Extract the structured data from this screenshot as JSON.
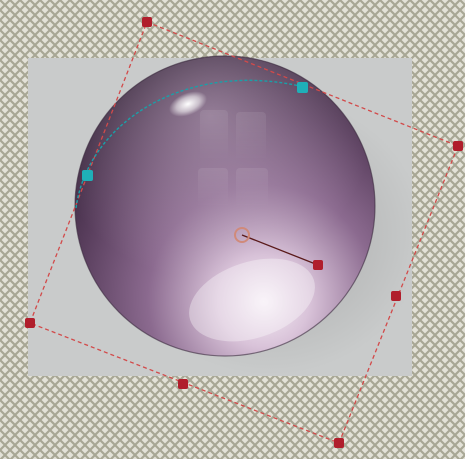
{
  "editor": {
    "tool": "transform",
    "highlight_tool": "gradient-highlight"
  },
  "colors": {
    "checker_light": "#e3e2d8",
    "checker_dark": "#a8a795",
    "canvas": "#c9cbcb",
    "sphere_dark": "#2a1a2e",
    "sphere_mid": "#6e4f72",
    "sphere_light": "#b79bb8",
    "sphere_glow": "#f6eef6",
    "transform_line": "#d24a4a",
    "transform_handle": "#b01e2c",
    "arc_line": "#1aa0a8",
    "arc_handle": "#1fb0b8",
    "center_ring": "#d08a7a",
    "vector_line": "#5a1a1a"
  },
  "icons": {
    "handle": "square-handle-icon",
    "pivot": "pivot-icon",
    "arc_handle": "arc-handle-icon"
  }
}
